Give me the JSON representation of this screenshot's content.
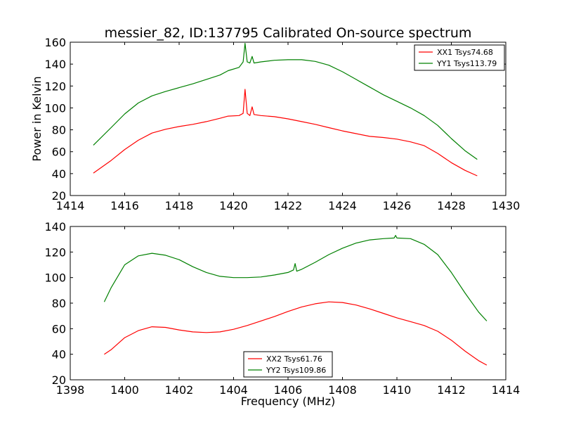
{
  "chart_data": [
    {
      "type": "line",
      "title": "messier_82, ID:137795 Calibrated On-source spectrum",
      "xlabel": "",
      "ylabel": "Power in Kelvin",
      "xlim": [
        1414,
        1430
      ],
      "ylim": [
        20,
        160
      ],
      "xticks": [
        "1414",
        "1416",
        "1418",
        "1420",
        "1422",
        "1424",
        "1426",
        "1428",
        "1430"
      ],
      "yticks": [
        "20",
        "40",
        "60",
        "80",
        "100",
        "120",
        "140",
        "160"
      ],
      "grid": false,
      "legend_position": "top-right",
      "series": [
        {
          "name": "XX1 Tsys74.68",
          "color": "#ff0000",
          "x": [
            1414.85,
            1415.5,
            1416.0,
            1416.5,
            1417.0,
            1417.5,
            1418.0,
            1418.5,
            1419.0,
            1419.5,
            1419.8,
            1420.2,
            1420.35,
            1420.42,
            1420.5,
            1420.6,
            1420.68,
            1420.75,
            1421.0,
            1421.5,
            1422.0,
            1422.5,
            1423.0,
            1423.5,
            1424.0,
            1424.5,
            1425.0,
            1425.5,
            1426.0,
            1426.5,
            1427.0,
            1427.5,
            1428.0,
            1428.5,
            1428.95
          ],
          "y": [
            40.5,
            52,
            62,
            70.5,
            77,
            80.5,
            83,
            85,
            87.5,
            90.5,
            92.5,
            93,
            95,
            117,
            95,
            93,
            101,
            94,
            93,
            92,
            90,
            87.5,
            85,
            82,
            79,
            76.5,
            74,
            73,
            71.5,
            69,
            65.5,
            58.5,
            50,
            43,
            38
          ]
        },
        {
          "name": "YY1 Tsys113.79",
          "color": "#008000",
          "x": [
            1414.85,
            1415.5,
            1416.0,
            1416.5,
            1417.0,
            1417.5,
            1418.0,
            1418.5,
            1419.0,
            1419.5,
            1419.8,
            1420.2,
            1420.35,
            1420.42,
            1420.5,
            1420.6,
            1420.68,
            1420.75,
            1421.0,
            1421.5,
            1422.0,
            1422.5,
            1423.0,
            1423.5,
            1424.0,
            1424.5,
            1425.0,
            1425.5,
            1426.0,
            1426.5,
            1427.0,
            1427.5,
            1428.0,
            1428.5,
            1428.95
          ],
          "y": [
            66,
            82,
            94.5,
            104.5,
            111,
            115,
            118.5,
            122,
            126,
            130,
            134,
            137,
            142,
            159,
            142,
            141,
            147,
            141,
            142,
            143.5,
            144,
            144,
            142.5,
            139,
            133,
            126,
            119,
            112,
            106,
            100,
            93,
            84,
            72,
            61,
            53
          ]
        }
      ]
    },
    {
      "type": "line",
      "title": "",
      "xlabel": "Frequency (MHz)",
      "ylabel": "",
      "xlim": [
        1398,
        1414
      ],
      "ylim": [
        20,
        140
      ],
      "xticks": [
        "1398",
        "1400",
        "1402",
        "1404",
        "1406",
        "1408",
        "1410",
        "1412",
        "1414"
      ],
      "yticks": [
        "20",
        "40",
        "60",
        "80",
        "100",
        "120",
        "140"
      ],
      "grid": false,
      "legend_position": "bottom-center",
      "series": [
        {
          "name": "XX2 Tsys61.76",
          "color": "#ff0000",
          "x": [
            1399.25,
            1399.5,
            1400.0,
            1400.5,
            1401.0,
            1401.5,
            1402.0,
            1402.5,
            1403.0,
            1403.5,
            1404.0,
            1404.5,
            1405.0,
            1405.5,
            1406.0,
            1406.5,
            1407.0,
            1407.5,
            1408.0,
            1408.5,
            1409.0,
            1409.5,
            1410.0,
            1410.5,
            1411.0,
            1411.5,
            1412.0,
            1412.5,
            1413.0,
            1413.3
          ],
          "y": [
            40,
            43.5,
            53,
            58.5,
            61.5,
            61,
            59,
            57.5,
            57,
            57.5,
            59.5,
            62.5,
            66,
            69.5,
            73.5,
            77,
            79.5,
            81,
            80.5,
            78.5,
            75.5,
            72,
            68.5,
            65.5,
            62.5,
            58,
            51,
            42.5,
            35,
            31.5
          ]
        },
        {
          "name": "YY2 Tsys109.86",
          "color": "#008000",
          "x": [
            1399.25,
            1399.5,
            1400.0,
            1400.5,
            1401.0,
            1401.5,
            1402.0,
            1402.5,
            1403.0,
            1403.5,
            1404.0,
            1404.5,
            1405.0,
            1405.5,
            1406.0,
            1406.2,
            1406.26,
            1406.32,
            1406.5,
            1407.0,
            1407.5,
            1408.0,
            1408.5,
            1409.0,
            1409.5,
            1409.9,
            1409.95,
            1410.0,
            1410.5,
            1411.0,
            1411.5,
            1412.0,
            1412.5,
            1413.0,
            1413.3
          ],
          "y": [
            81,
            92,
            110,
            117,
            119,
            117.5,
            114,
            108.5,
            104,
            101,
            100,
            100,
            100.5,
            102,
            104,
            106,
            111,
            105,
            106.5,
            112,
            118,
            123,
            127,
            129.5,
            130.5,
            131,
            133,
            131,
            130.5,
            126,
            118,
            104,
            88,
            73,
            66
          ]
        }
      ]
    }
  ]
}
